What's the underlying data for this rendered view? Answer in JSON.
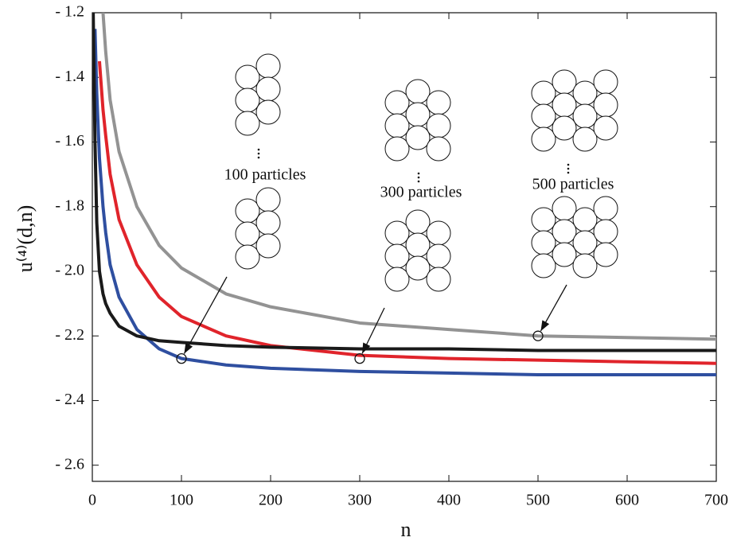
{
  "chart_data": {
    "type": "line",
    "xlabel": "n",
    "ylabel": "u⁽⁴⁾(d,n)",
    "x": [
      1,
      3,
      5,
      8,
      12,
      15,
      20,
      30,
      50,
      75,
      100,
      150,
      200,
      300,
      400,
      500,
      600,
      700
    ],
    "series": [
      {
        "color": "#939393",
        "values": [
          null,
          null,
          null,
          null,
          -1.2,
          -1.32,
          -1.47,
          -1.63,
          -1.8,
          -1.92,
          -1.99,
          -2.07,
          -2.11,
          -2.16,
          -2.18,
          -2.2,
          -2.205,
          -2.21
        ]
      },
      {
        "color": "#e0242b",
        "values": [
          null,
          null,
          null,
          -1.35,
          -1.5,
          -1.58,
          -1.7,
          -1.84,
          -1.98,
          -2.08,
          -2.14,
          -2.2,
          -2.23,
          -2.26,
          -2.27,
          -2.275,
          -2.28,
          -2.285
        ]
      },
      {
        "color": "#2f4fa0",
        "values": [
          null,
          -1.25,
          -1.45,
          -1.65,
          -1.8,
          -1.88,
          -1.98,
          -2.08,
          -2.18,
          -2.24,
          -2.27,
          -2.29,
          -2.3,
          -2.31,
          -2.315,
          -2.32,
          -2.32,
          -2.32
        ]
      },
      {
        "color": "#1a1a1a",
        "values": [
          -1.2,
          -1.6,
          -1.85,
          -2.0,
          -2.07,
          -2.1,
          -2.13,
          -2.17,
          -2.2,
          -2.215,
          -2.22,
          -2.23,
          -2.235,
          -2.24,
          -2.24,
          -2.245,
          -2.245,
          -2.245
        ]
      }
    ],
    "annotations": [
      {
        "text": "100 particles",
        "x": 100,
        "y": -2.27
      },
      {
        "text": "300 particles",
        "x": 300,
        "y": -2.27
      },
      {
        "text": "500 particles",
        "x": 500,
        "y": -2.2
      }
    ],
    "xlim": [
      0,
      700
    ],
    "ylim": [
      -2.65,
      -1.2
    ],
    "xticks": [
      0,
      100,
      200,
      300,
      400,
      500,
      600,
      700
    ],
    "yticks": [
      {
        "value": -1.2,
        "label": "- 1.2"
      },
      {
        "value": -1.4,
        "label": "- 1.4"
      },
      {
        "value": -1.6,
        "label": "- 1.6"
      },
      {
        "value": -1.8,
        "label": "- 1.8"
      },
      {
        "value": -2.0,
        "label": "- 2.0"
      },
      {
        "value": -2.2,
        "label": "- 2.2"
      },
      {
        "value": -2.4,
        "label": "- 2.4"
      },
      {
        "value": -2.6,
        "label": "- 2.6"
      }
    ]
  }
}
